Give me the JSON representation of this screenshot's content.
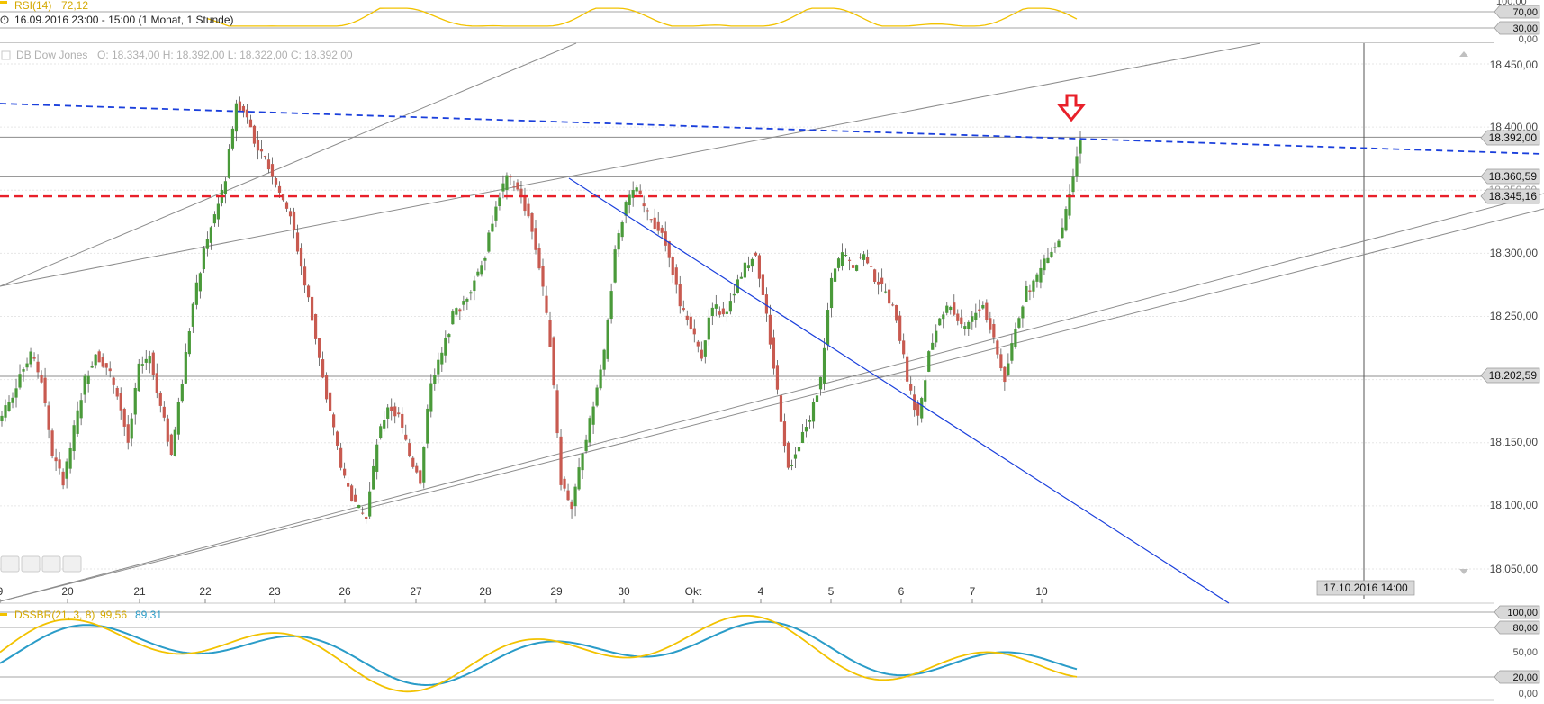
{
  "rsi_panel": {
    "name": "RSI(14)",
    "value": "72,12",
    "date_range": "16.09.2016 23:00 - 15:00 (1 Monat, 1 Stunde)",
    "levels": [
      "70,00",
      "30,00"
    ],
    "top_label": "100,00",
    "bottom_label": "0,00",
    "color": "#f2c200"
  },
  "price_panel": {
    "title": "DB Dow Jones",
    "ohlc": "O: 18.334,00  H: 18.392,00  L: 18.322,00  C: 18.392,00",
    "y_ticks": [
      "18.450,00",
      "18.400,00",
      "18.300,00",
      "18.250,00",
      "18.150,00",
      "18.100,00",
      "18.050,00"
    ],
    "price_markers": [
      "18.392,00",
      "18.360,59",
      "18.345,16",
      "18.202,59"
    ],
    "hidden_marker": "18.350,00",
    "x_labels": [
      "9",
      "20",
      "21",
      "22",
      "23",
      "26",
      "27",
      "28",
      "29",
      "30",
      "Okt",
      "4",
      "5",
      "6",
      "7",
      "10"
    ],
    "crosshair_label": "17.10.2016 14:00",
    "colors": {
      "up_candle": "#4a9a3a",
      "down_candle": "#c85a50",
      "resistance_red": "#e8202a",
      "blue_trend": "#1a3fdc",
      "gray_line": "#8c8c8c",
      "arrow": "#e8202a"
    }
  },
  "dssbr_panel": {
    "name": "DSSBR(21, 3, 8)",
    "value1": "99,56",
    "value2": "89,31",
    "levels": [
      "100,00",
      "80,00",
      "50,00",
      "20,00",
      "0,00"
    ],
    "color_fast": "#f2c200",
    "color_slow": "#2a9cc8"
  },
  "chart_data": {
    "type": "candlestick",
    "title": "DB Dow Jones",
    "ylim": [
      18040,
      18470
    ],
    "x": [
      "9",
      "20",
      "21",
      "22",
      "23",
      "26",
      "27",
      "28",
      "29",
      "30",
      "Okt",
      "4",
      "5",
      "6",
      "7",
      "10"
    ],
    "close_series": [
      18180,
      18205,
      18220,
      18200,
      18140,
      18120,
      18160,
      18200,
      18220,
      18210,
      18190,
      18150,
      18210,
      18220,
      18180,
      18140,
      18200,
      18260,
      18300,
      18330,
      18360,
      18420,
      18410,
      18380,
      18370,
      18350,
      18330,
      18290,
      18250,
      18200,
      18160,
      18120,
      18100,
      18090,
      18150,
      18180,
      18170,
      18140,
      18120,
      18200,
      18220,
      18250,
      18260,
      18280,
      18300,
      18340,
      18360,
      18350,
      18330,
      18290,
      18230,
      18120,
      18100,
      18140,
      18180,
      18220,
      18300,
      18340,
      18350,
      18330,
      18320,
      18300,
      18260,
      18240,
      18220,
      18260,
      18250,
      18270,
      18290,
      18300,
      18250,
      18190,
      18130,
      18150,
      18170,
      18200,
      18280,
      18300,
      18290,
      18300,
      18280,
      18270,
      18250,
      18200,
      18170,
      18220,
      18250,
      18260,
      18240,
      18250,
      18260,
      18230,
      18200,
      18240,
      18270,
      18280,
      18300,
      18310,
      18345,
      18392
    ],
    "horizontal_levels": [
      18392,
      18360.59,
      18345.16,
      18202.59
    ],
    "trendlines": [
      "resistance 18345.16 (red dashed)",
      "falling blue dashed resistance",
      "falling blue trendline",
      "rising gray channel lines"
    ]
  }
}
